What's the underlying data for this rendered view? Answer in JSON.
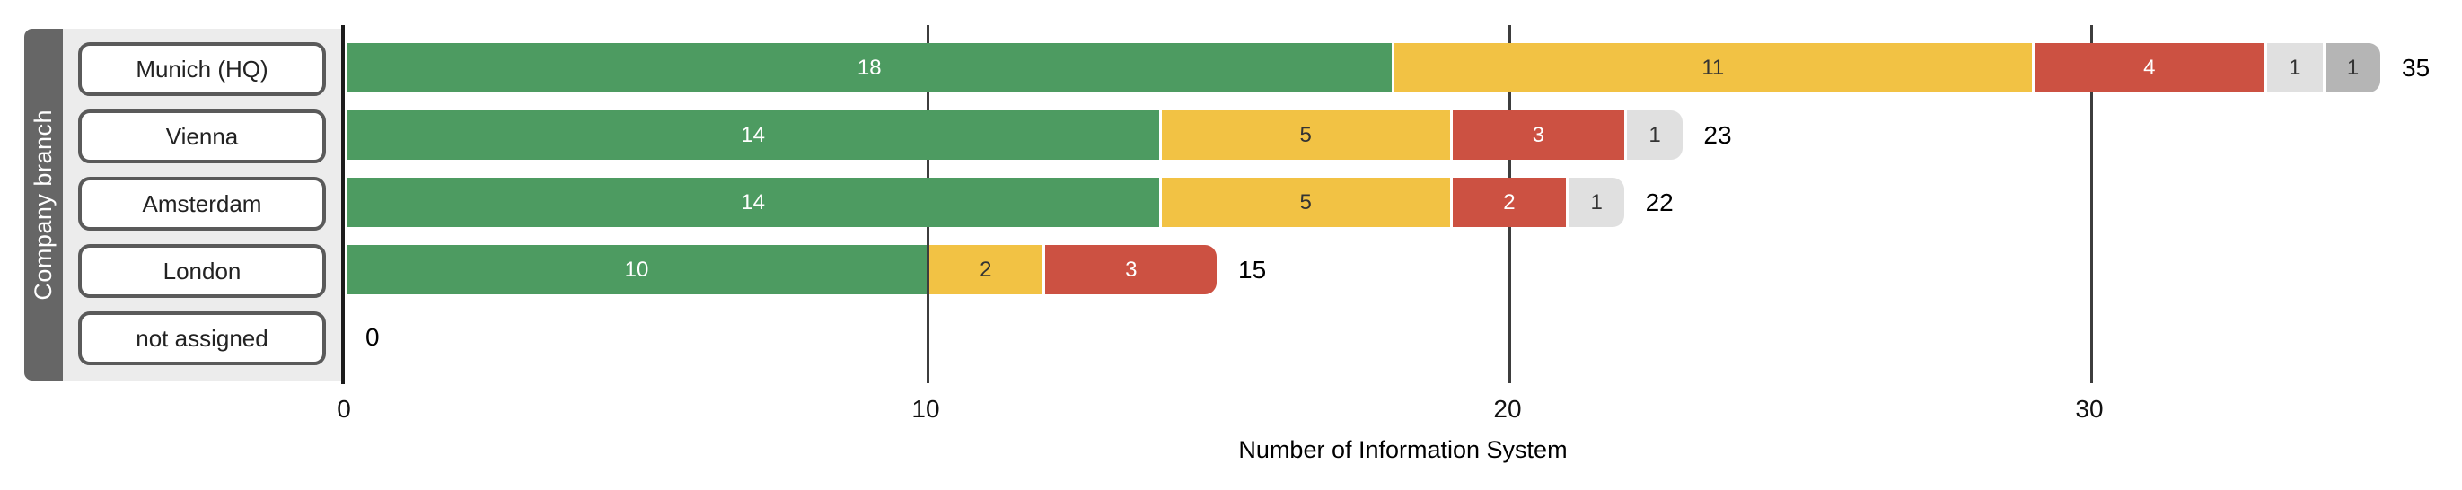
{
  "chart_data": {
    "type": "bar",
    "orientation": "horizontal",
    "stacked": true,
    "title": "",
    "xlabel": "Number of Information System",
    "ylabel": "Company branch",
    "categories": [
      "Munich (HQ)",
      "Vienna",
      "Amsterdam",
      "London",
      "not assigned"
    ],
    "series": [
      {
        "name": "green",
        "color": "#4d9b61",
        "text_color": "#ffffff",
        "values": [
          18,
          14,
          14,
          10,
          0
        ]
      },
      {
        "name": "yellow",
        "color": "#f2c244",
        "text_color": "#333333",
        "values": [
          11,
          5,
          5,
          2,
          0
        ]
      },
      {
        "name": "red",
        "color": "#cc5142",
        "text_color": "#ffffff",
        "values": [
          4,
          3,
          2,
          3,
          0
        ]
      },
      {
        "name": "light-gray",
        "color": "#e0e0e0",
        "text_color": "#333333",
        "values": [
          1,
          1,
          1,
          0,
          0
        ]
      },
      {
        "name": "dark-gray",
        "color": "#b5b5b5",
        "text_color": "#333333",
        "values": [
          1,
          0,
          0,
          0,
          0
        ]
      }
    ],
    "totals": [
      "35",
      "23",
      "22",
      "15",
      "0"
    ],
    "x_ticks": [
      "0",
      "10",
      "20",
      "30"
    ],
    "xlim": [
      0,
      36.4
    ],
    "grid": true,
    "legend": false,
    "segment_labels": true
  }
}
